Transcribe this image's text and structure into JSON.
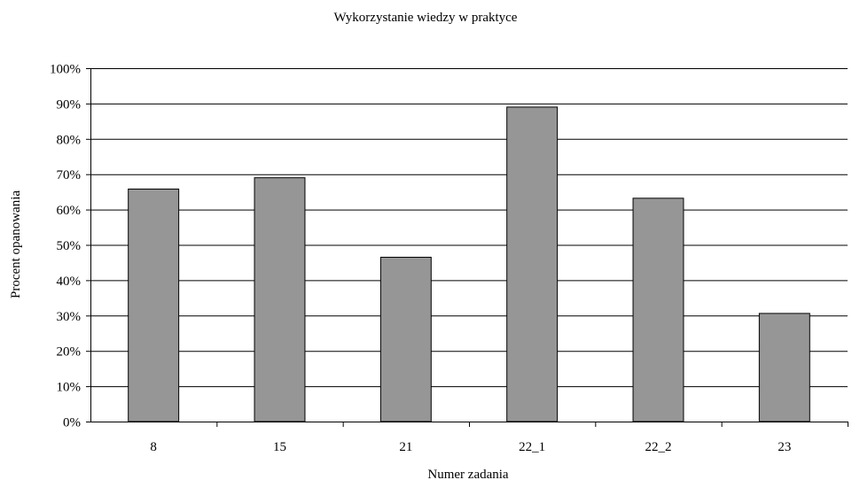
{
  "chart_data": {
    "type": "bar",
    "title": "Wykorzystanie wiedzy w praktyce",
    "xlabel": "Numer zadania",
    "ylabel": "Procent opanowania",
    "categories": [
      "8",
      "15",
      "21",
      "22_1",
      "22_2",
      "23"
    ],
    "values": [
      65.8,
      69,
      46.5,
      89,
      63.2,
      30.6
    ],
    "ylim": [
      0,
      100
    ],
    "yticks": [
      "0%",
      "10%",
      "20%",
      "30%",
      "40%",
      "50%",
      "60%",
      "70%",
      "80%",
      "90%",
      "100%"
    ],
    "grid": true,
    "legend": "none",
    "colors": {
      "bar": "#969696",
      "bar_edge": "#000000",
      "grid": "#000000"
    }
  }
}
